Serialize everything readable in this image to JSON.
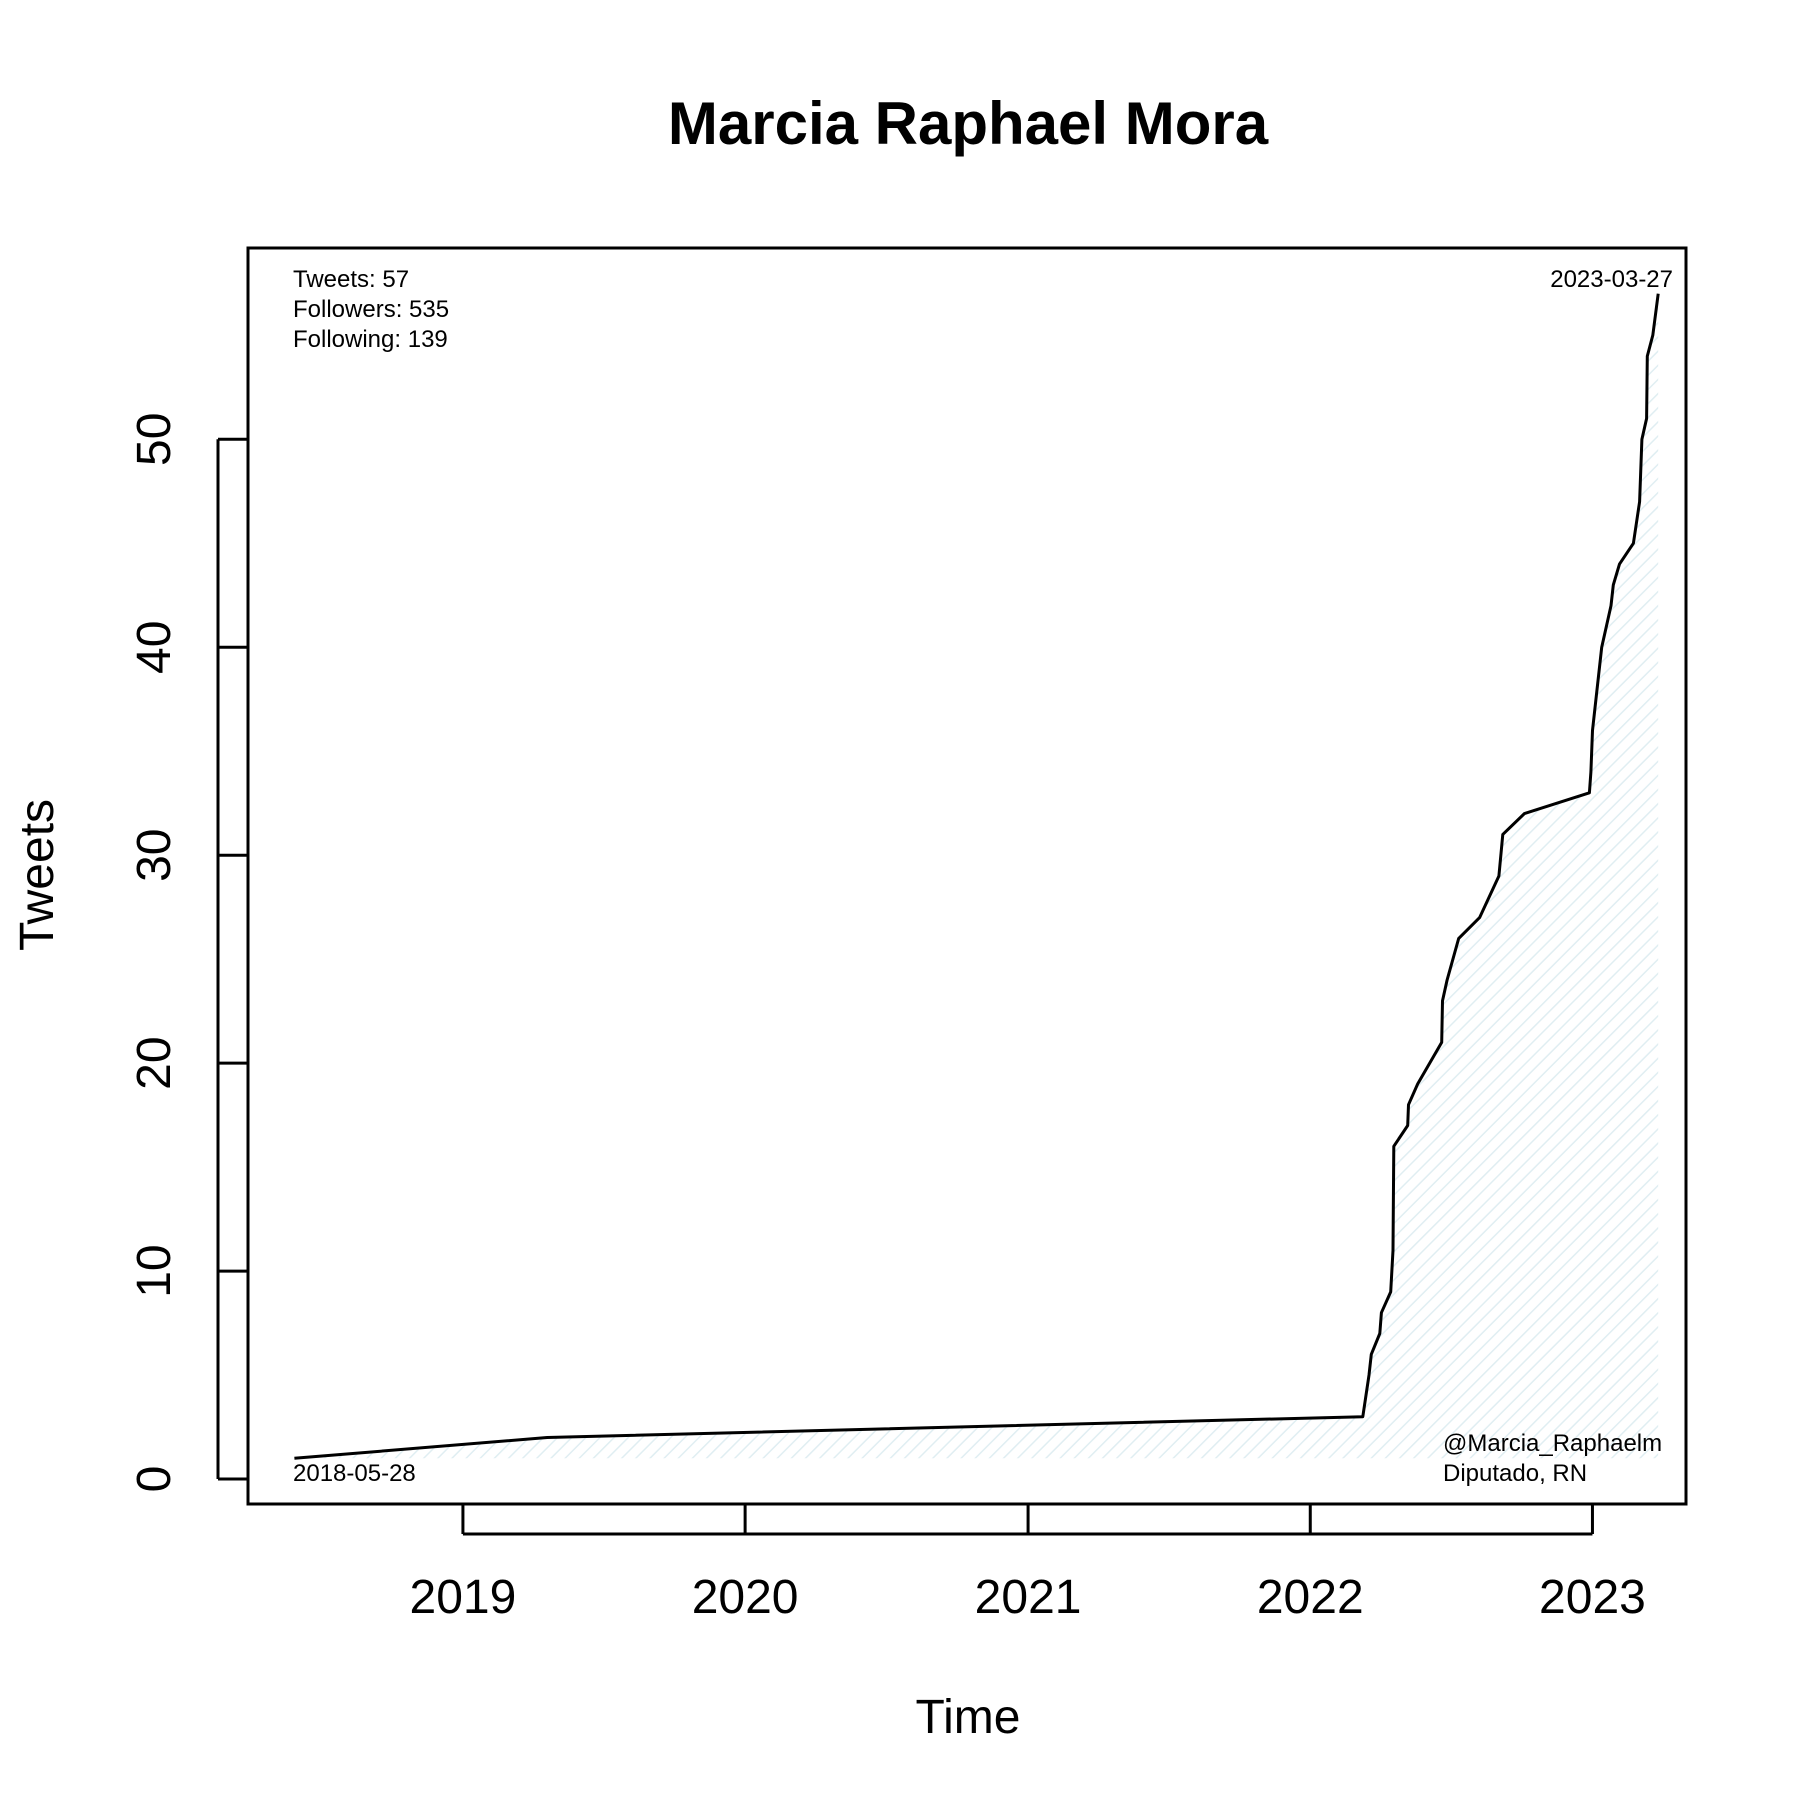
{
  "chart_data": {
    "type": "line",
    "title": "Marcia Raphael Mora",
    "xlabel": "Time",
    "ylabel": "Tweets",
    "x_ticks": [
      "2019",
      "2020",
      "2021",
      "2022",
      "2023"
    ],
    "y_ticks": [
      0,
      10,
      20,
      30,
      40,
      50
    ],
    "xlim": [
      "2018-03-29",
      "2023-05-02"
    ],
    "ylim": [
      -1.2,
      59.2
    ],
    "grid": false,
    "legend": "none",
    "fill_color": "#e0eef2",
    "line_color": "#000000",
    "annotations": {
      "stats": [
        "Tweets: 57",
        "Followers: 535",
        "Following: 139"
      ],
      "start_date": "2018-05-28",
      "end_date": "2023-03-27",
      "handle": "@Marcia_Raphaelm",
      "role": "Diputado, RN"
    },
    "series": [
      {
        "points": [
          [
            "2018-05-28",
            1
          ],
          [
            "2019-04-20",
            2
          ],
          [
            "2022-03-10",
            3
          ],
          [
            "2022-03-14",
            4
          ],
          [
            "2022-03-18",
            5
          ],
          [
            "2022-03-21",
            6
          ],
          [
            "2022-04-01",
            7
          ],
          [
            "2022-04-03",
            8
          ],
          [
            "2022-04-15",
            9
          ],
          [
            "2022-04-18",
            11
          ],
          [
            "2022-04-19",
            16
          ],
          [
            "2022-05-07",
            17
          ],
          [
            "2022-05-08",
            18
          ],
          [
            "2022-05-20",
            19
          ],
          [
            "2022-06-20",
            21
          ],
          [
            "2022-06-21",
            23
          ],
          [
            "2022-06-27",
            24
          ],
          [
            "2022-07-12",
            26
          ],
          [
            "2022-08-08",
            27
          ],
          [
            "2022-09-02",
            29
          ],
          [
            "2022-09-07",
            31
          ],
          [
            "2022-10-05",
            32
          ],
          [
            "2022-12-28",
            33
          ],
          [
            "2022-12-30",
            34
          ],
          [
            "2023-01-01",
            36
          ],
          [
            "2023-01-07",
            38
          ],
          [
            "2023-01-13",
            40
          ],
          [
            "2023-01-25",
            42
          ],
          [
            "2023-01-28",
            43
          ],
          [
            "2023-02-05",
            44
          ],
          [
            "2023-02-23",
            45
          ],
          [
            "2023-03-03",
            47
          ],
          [
            "2023-03-06",
            50
          ],
          [
            "2023-03-12",
            51
          ],
          [
            "2023-03-13",
            54
          ],
          [
            "2023-03-20",
            55
          ],
          [
            "2023-03-27",
            57
          ]
        ]
      }
    ]
  }
}
